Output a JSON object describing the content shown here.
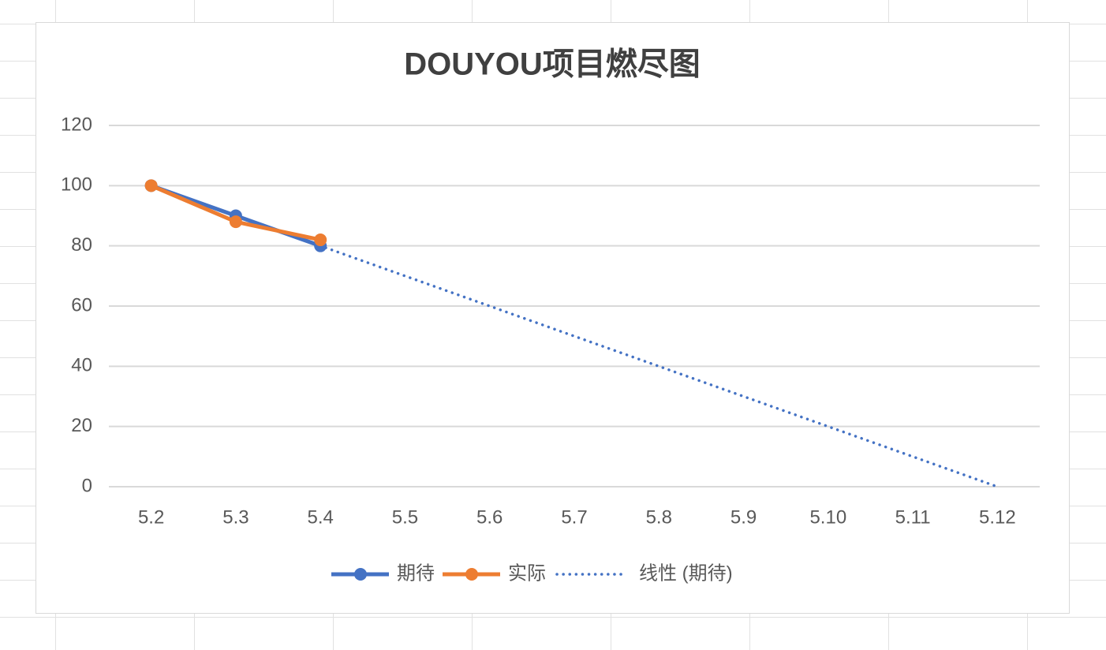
{
  "chart_data": {
    "type": "line",
    "title": "DOUYOU项目燃尽图",
    "categories": [
      "5.2",
      "5.3",
      "5.4",
      "5.5",
      "5.6",
      "5.7",
      "5.8",
      "5.9",
      "5.10",
      "5.11",
      "5.12"
    ],
    "series": [
      {
        "name": "期待",
        "color": "#4472c4",
        "values": [
          100,
          90,
          80,
          null,
          null,
          null,
          null,
          null,
          null,
          null,
          null
        ]
      },
      {
        "name": "实际",
        "color": "#ed7d31",
        "values": [
          100,
          88,
          82,
          null,
          null,
          null,
          null,
          null,
          null,
          null,
          null
        ]
      },
      {
        "name": "线性 (期待)",
        "color": "#4472c4",
        "dotted": true,
        "values": [
          100,
          90,
          80,
          70,
          60,
          50,
          40,
          30,
          20,
          10,
          0
        ]
      }
    ],
    "ylim": [
      0,
      120
    ],
    "yticks": [
      0,
      20,
      40,
      60,
      80,
      100,
      120
    ],
    "grid": true,
    "legend": "bottom"
  }
}
